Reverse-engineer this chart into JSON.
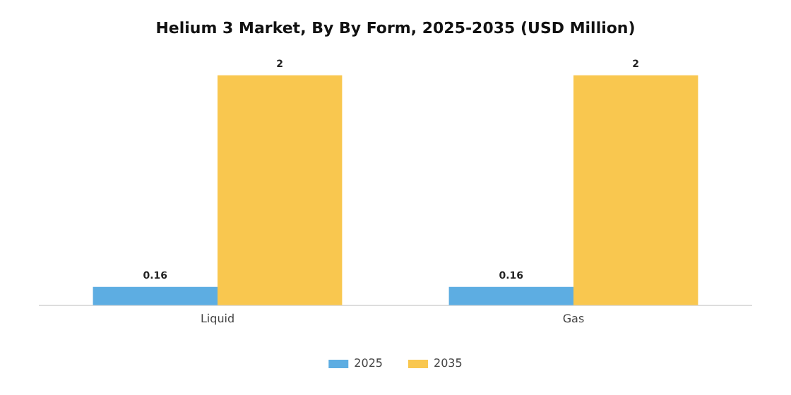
{
  "chart_data": {
    "type": "bar",
    "title": "Helium 3 Market, By By Form, 2025-2035 (USD Million)",
    "categories": [
      "Liquid",
      "Gas"
    ],
    "series": [
      {
        "name": "2025",
        "color": "#5dade2",
        "values": [
          0.16,
          0.16
        ]
      },
      {
        "name": "2035",
        "color": "#f9c74f",
        "values": [
          2,
          2
        ]
      }
    ],
    "data_labels": true,
    "legend": "bottom",
    "grid": false,
    "tick_labels": "x"
  }
}
